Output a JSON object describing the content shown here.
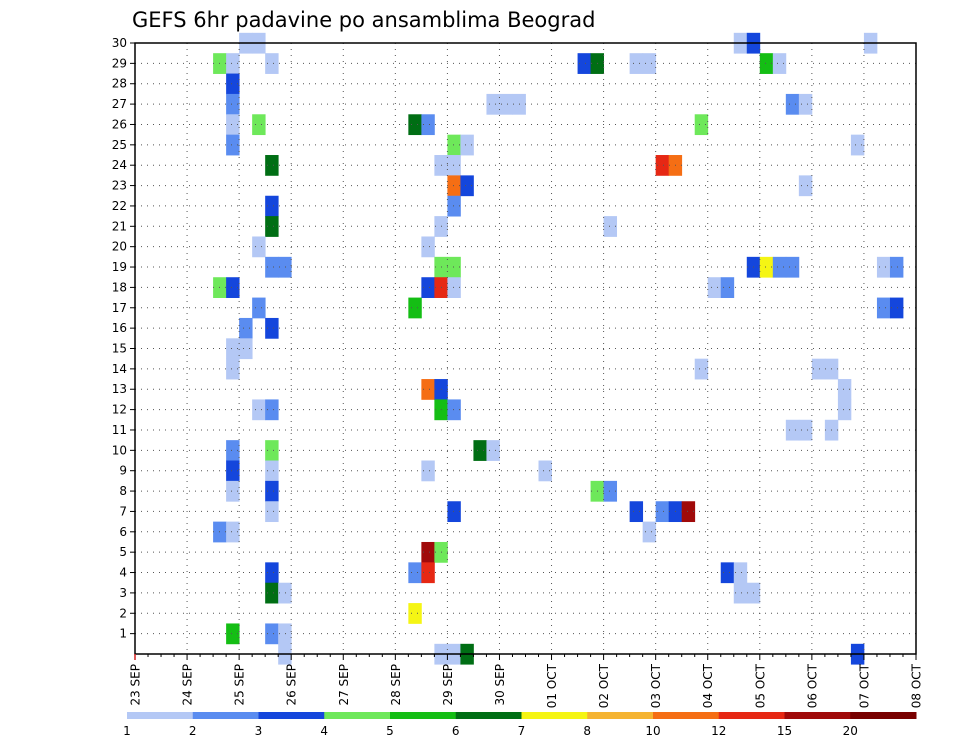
{
  "chart_data": {
    "type": "heatmap",
    "title": "GEFS 6hr padavine po ansamblima Beograd",
    "x_tick_labels": [
      "23 SEP",
      "24 SEP",
      "25 SEP",
      "26 SEP",
      "27 SEP",
      "28 SEP",
      "29 SEP",
      "30 SEP",
      "01 OCT",
      "02 OCT",
      "03 OCT",
      "04 OCT",
      "05 OCT",
      "06 OCT",
      "07 OCT",
      "08 OCT"
    ],
    "y_tick_labels": [
      "1",
      "2",
      "3",
      "4",
      "5",
      "6",
      "7",
      "8",
      "9",
      "10",
      "11",
      "12",
      "13",
      "14",
      "15",
      "16",
      "17",
      "18",
      "19",
      "20",
      "21",
      "22",
      "23",
      "24",
      "25",
      "26",
      "27",
      "28",
      "29",
      "30"
    ],
    "x_range_steps": [
      0,
      60
    ],
    "y_range": [
      0,
      30
    ],
    "grid": true,
    "legend": {
      "position": "bottom",
      "labels": [
        "1",
        "2",
        "3",
        "4",
        "5",
        "6",
        "7",
        "8",
        "10",
        "12",
        "15",
        "20"
      ],
      "colors": [
        "#b4c8f5",
        "#5a8cf0",
        "#1446dc",
        "#6ee85a",
        "#14be14",
        "#006e14",
        "#f5f514",
        "#f5b432",
        "#f56e14",
        "#e62814",
        "#a00a0a",
        "#780000"
      ]
    },
    "cells": [
      {
        "x": 8,
        "y": 30,
        "c": 0
      },
      {
        "x": 9,
        "y": 30,
        "c": 0
      },
      {
        "x": 46,
        "y": 30,
        "c": 0
      },
      {
        "x": 47,
        "y": 30,
        "c": 2
      },
      {
        "x": 56,
        "y": 30,
        "c": 0
      },
      {
        "x": 6,
        "y": 29,
        "c": 3
      },
      {
        "x": 7,
        "y": 29,
        "c": 0
      },
      {
        "x": 10,
        "y": 29,
        "c": 0
      },
      {
        "x": 34,
        "y": 29,
        "c": 2
      },
      {
        "x": 35,
        "y": 29,
        "c": 5
      },
      {
        "x": 38,
        "y": 29,
        "c": 0
      },
      {
        "x": 39,
        "y": 29,
        "c": 0
      },
      {
        "x": 48,
        "y": 29,
        "c": 4
      },
      {
        "x": 49,
        "y": 29,
        "c": 0
      },
      {
        "x": 7,
        "y": 28,
        "c": 2
      },
      {
        "x": 7,
        "y": 27,
        "c": 1
      },
      {
        "x": 27,
        "y": 27,
        "c": 0
      },
      {
        "x": 28,
        "y": 27,
        "c": 0
      },
      {
        "x": 29,
        "y": 27,
        "c": 0
      },
      {
        "x": 50,
        "y": 27,
        "c": 1
      },
      {
        "x": 51,
        "y": 27,
        "c": 0
      },
      {
        "x": 7,
        "y": 26,
        "c": 0
      },
      {
        "x": 9,
        "y": 26,
        "c": 3
      },
      {
        "x": 21,
        "y": 26,
        "c": 5
      },
      {
        "x": 22,
        "y": 26,
        "c": 1
      },
      {
        "x": 43,
        "y": 26,
        "c": 3
      },
      {
        "x": 7,
        "y": 25,
        "c": 1
      },
      {
        "x": 24,
        "y": 25,
        "c": 3
      },
      {
        "x": 25,
        "y": 25,
        "c": 0
      },
      {
        "x": 55,
        "y": 25,
        "c": 0
      },
      {
        "x": 10,
        "y": 24,
        "c": 5
      },
      {
        "x": 23,
        "y": 24,
        "c": 0
      },
      {
        "x": 24,
        "y": 24,
        "c": 0
      },
      {
        "x": 40,
        "y": 24,
        "c": 9
      },
      {
        "x": 41,
        "y": 24,
        "c": 8
      },
      {
        "x": 24,
        "y": 23,
        "c": 8
      },
      {
        "x": 25,
        "y": 23,
        "c": 2
      },
      {
        "x": 51,
        "y": 23,
        "c": 0
      },
      {
        "x": 10,
        "y": 22,
        "c": 2
      },
      {
        "x": 24,
        "y": 22,
        "c": 1
      },
      {
        "x": 10,
        "y": 21,
        "c": 5
      },
      {
        "x": 23,
        "y": 21,
        "c": 0
      },
      {
        "x": 36,
        "y": 21,
        "c": 0
      },
      {
        "x": 9,
        "y": 20,
        "c": 0
      },
      {
        "x": 22,
        "y": 20,
        "c": 0
      },
      {
        "x": 10,
        "y": 19,
        "c": 1
      },
      {
        "x": 11,
        "y": 19,
        "c": 1
      },
      {
        "x": 23,
        "y": 19,
        "c": 3
      },
      {
        "x": 24,
        "y": 19,
        "c": 3
      },
      {
        "x": 47,
        "y": 19,
        "c": 2
      },
      {
        "x": 48,
        "y": 19,
        "c": 6
      },
      {
        "x": 49,
        "y": 19,
        "c": 1
      },
      {
        "x": 50,
        "y": 19,
        "c": 1
      },
      {
        "x": 57,
        "y": 19,
        "c": 0
      },
      {
        "x": 58,
        "y": 19,
        "c": 1
      },
      {
        "x": 6,
        "y": 18,
        "c": 3
      },
      {
        "x": 7,
        "y": 18,
        "c": 2
      },
      {
        "x": 22,
        "y": 18,
        "c": 2
      },
      {
        "x": 23,
        "y": 18,
        "c": 9
      },
      {
        "x": 24,
        "y": 18,
        "c": 0
      },
      {
        "x": 44,
        "y": 18,
        "c": 0
      },
      {
        "x": 45,
        "y": 18,
        "c": 1
      },
      {
        "x": 9,
        "y": 17,
        "c": 1
      },
      {
        "x": 21,
        "y": 17,
        "c": 4
      },
      {
        "x": 57,
        "y": 17,
        "c": 1
      },
      {
        "x": 58,
        "y": 17,
        "c": 2
      },
      {
        "x": 8,
        "y": 16,
        "c": 1
      },
      {
        "x": 10,
        "y": 16,
        "c": 2
      },
      {
        "x": 7,
        "y": 15,
        "c": 0
      },
      {
        "x": 8,
        "y": 15,
        "c": 0
      },
      {
        "x": 7,
        "y": 14,
        "c": 0
      },
      {
        "x": 43,
        "y": 14,
        "c": 0
      },
      {
        "x": 52,
        "y": 14,
        "c": 0
      },
      {
        "x": 53,
        "y": 14,
        "c": 0
      },
      {
        "x": 22,
        "y": 13,
        "c": 8
      },
      {
        "x": 23,
        "y": 13,
        "c": 2
      },
      {
        "x": 54,
        "y": 13,
        "c": 0
      },
      {
        "x": 9,
        "y": 12,
        "c": 0
      },
      {
        "x": 10,
        "y": 12,
        "c": 1
      },
      {
        "x": 23,
        "y": 12,
        "c": 4
      },
      {
        "x": 24,
        "y": 12,
        "c": 1
      },
      {
        "x": 54,
        "y": 12,
        "c": 0
      },
      {
        "x": 50,
        "y": 11,
        "c": 0
      },
      {
        "x": 51,
        "y": 11,
        "c": 0
      },
      {
        "x": 53,
        "y": 11,
        "c": 0
      },
      {
        "x": 7,
        "y": 10,
        "c": 1
      },
      {
        "x": 10,
        "y": 10,
        "c": 3
      },
      {
        "x": 26,
        "y": 10,
        "c": 5
      },
      {
        "x": 27,
        "y": 10,
        "c": 0
      },
      {
        "x": 7,
        "y": 9,
        "c": 2
      },
      {
        "x": 10,
        "y": 9,
        "c": 0
      },
      {
        "x": 22,
        "y": 9,
        "c": 0
      },
      {
        "x": 31,
        "y": 9,
        "c": 0
      },
      {
        "x": 7,
        "y": 8,
        "c": 0
      },
      {
        "x": 10,
        "y": 8,
        "c": 2
      },
      {
        "x": 35,
        "y": 8,
        "c": 3
      },
      {
        "x": 36,
        "y": 8,
        "c": 1
      },
      {
        "x": 10,
        "y": 7,
        "c": 0
      },
      {
        "x": 24,
        "y": 7,
        "c": 2
      },
      {
        "x": 38,
        "y": 7,
        "c": 2
      },
      {
        "x": 40,
        "y": 7,
        "c": 1
      },
      {
        "x": 41,
        "y": 7,
        "c": 2
      },
      {
        "x": 42,
        "y": 7,
        "c": 10
      },
      {
        "x": 6,
        "y": 6,
        "c": 1
      },
      {
        "x": 7,
        "y": 6,
        "c": 0
      },
      {
        "x": 39,
        "y": 6,
        "c": 0
      },
      {
        "x": 22,
        "y": 5,
        "c": 10
      },
      {
        "x": 23,
        "y": 5,
        "c": 3
      },
      {
        "x": 10,
        "y": 4,
        "c": 2
      },
      {
        "x": 21,
        "y": 4,
        "c": 1
      },
      {
        "x": 22,
        "y": 4,
        "c": 9
      },
      {
        "x": 45,
        "y": 4,
        "c": 2
      },
      {
        "x": 46,
        "y": 4,
        "c": 0
      },
      {
        "x": 10,
        "y": 3,
        "c": 5
      },
      {
        "x": 11,
        "y": 3,
        "c": 0
      },
      {
        "x": 46,
        "y": 3,
        "c": 0
      },
      {
        "x": 47,
        "y": 3,
        "c": 0
      },
      {
        "x": 21,
        "y": 2,
        "c": 6
      },
      {
        "x": 7,
        "y": 1,
        "c": 4
      },
      {
        "x": 10,
        "y": 1,
        "c": 1
      },
      {
        "x": 11,
        "y": 1,
        "c": 0
      },
      {
        "x": 11,
        "y": 0,
        "c": 0
      },
      {
        "x": 23,
        "y": 0,
        "c": 0
      },
      {
        "x": 24,
        "y": 0,
        "c": 0
      },
      {
        "x": 25,
        "y": 0,
        "c": 5
      },
      {
        "x": 55,
        "y": 0,
        "c": 2
      }
    ]
  }
}
